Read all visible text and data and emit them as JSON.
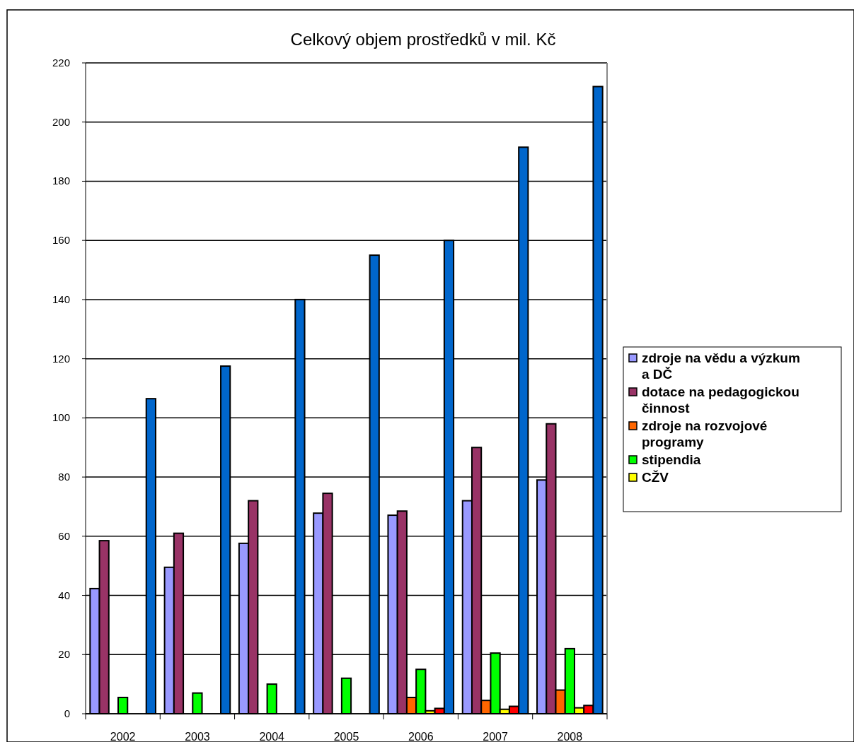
{
  "chart_data": {
    "type": "bar",
    "title": "Celkový objem prostředků v mil. Kč",
    "categories": [
      "2002",
      "2003",
      "2004",
      "2005",
      "2006",
      "2007",
      "2008"
    ],
    "series": [
      {
        "name": "zdroje na vědu a výzkum a DČ",
        "color": "#9999ff",
        "values": [
          42.3,
          49.5,
          57.6,
          67.8,
          67.1,
          72,
          79
        ]
      },
      {
        "name": "dotace na pedagogickou činnost",
        "color": "#993366",
        "values": [
          58.5,
          61,
          72,
          74.5,
          68.5,
          90,
          98
        ]
      },
      {
        "name": "zdroje na rozvojové programy",
        "color": "#ff6600",
        "values": [
          null,
          null,
          null,
          null,
          5.5,
          4.5,
          8
        ]
      },
      {
        "name": "stipendia",
        "color": "#00ff00",
        "values": [
          5.5,
          7,
          10,
          12,
          15,
          20.5,
          22
        ]
      },
      {
        "name": "CŽV",
        "color": "#ffff00",
        "values": [
          null,
          null,
          null,
          null,
          1,
          1.5,
          2
        ]
      },
      {
        "color": "#ff0000",
        "values": [
          null,
          null,
          null,
          null,
          1.8,
          2.5,
          2.8
        ]
      },
      {
        "color": "#0066cc",
        "values": [
          106.5,
          117.5,
          140,
          155,
          160,
          191.5,
          212
        ]
      }
    ],
    "ylim": [
      0,
      220
    ],
    "yticks": [
      0,
      20,
      40,
      60,
      80,
      100,
      120,
      140,
      160,
      180,
      200,
      220
    ],
    "grid": "y",
    "legend": "right"
  }
}
